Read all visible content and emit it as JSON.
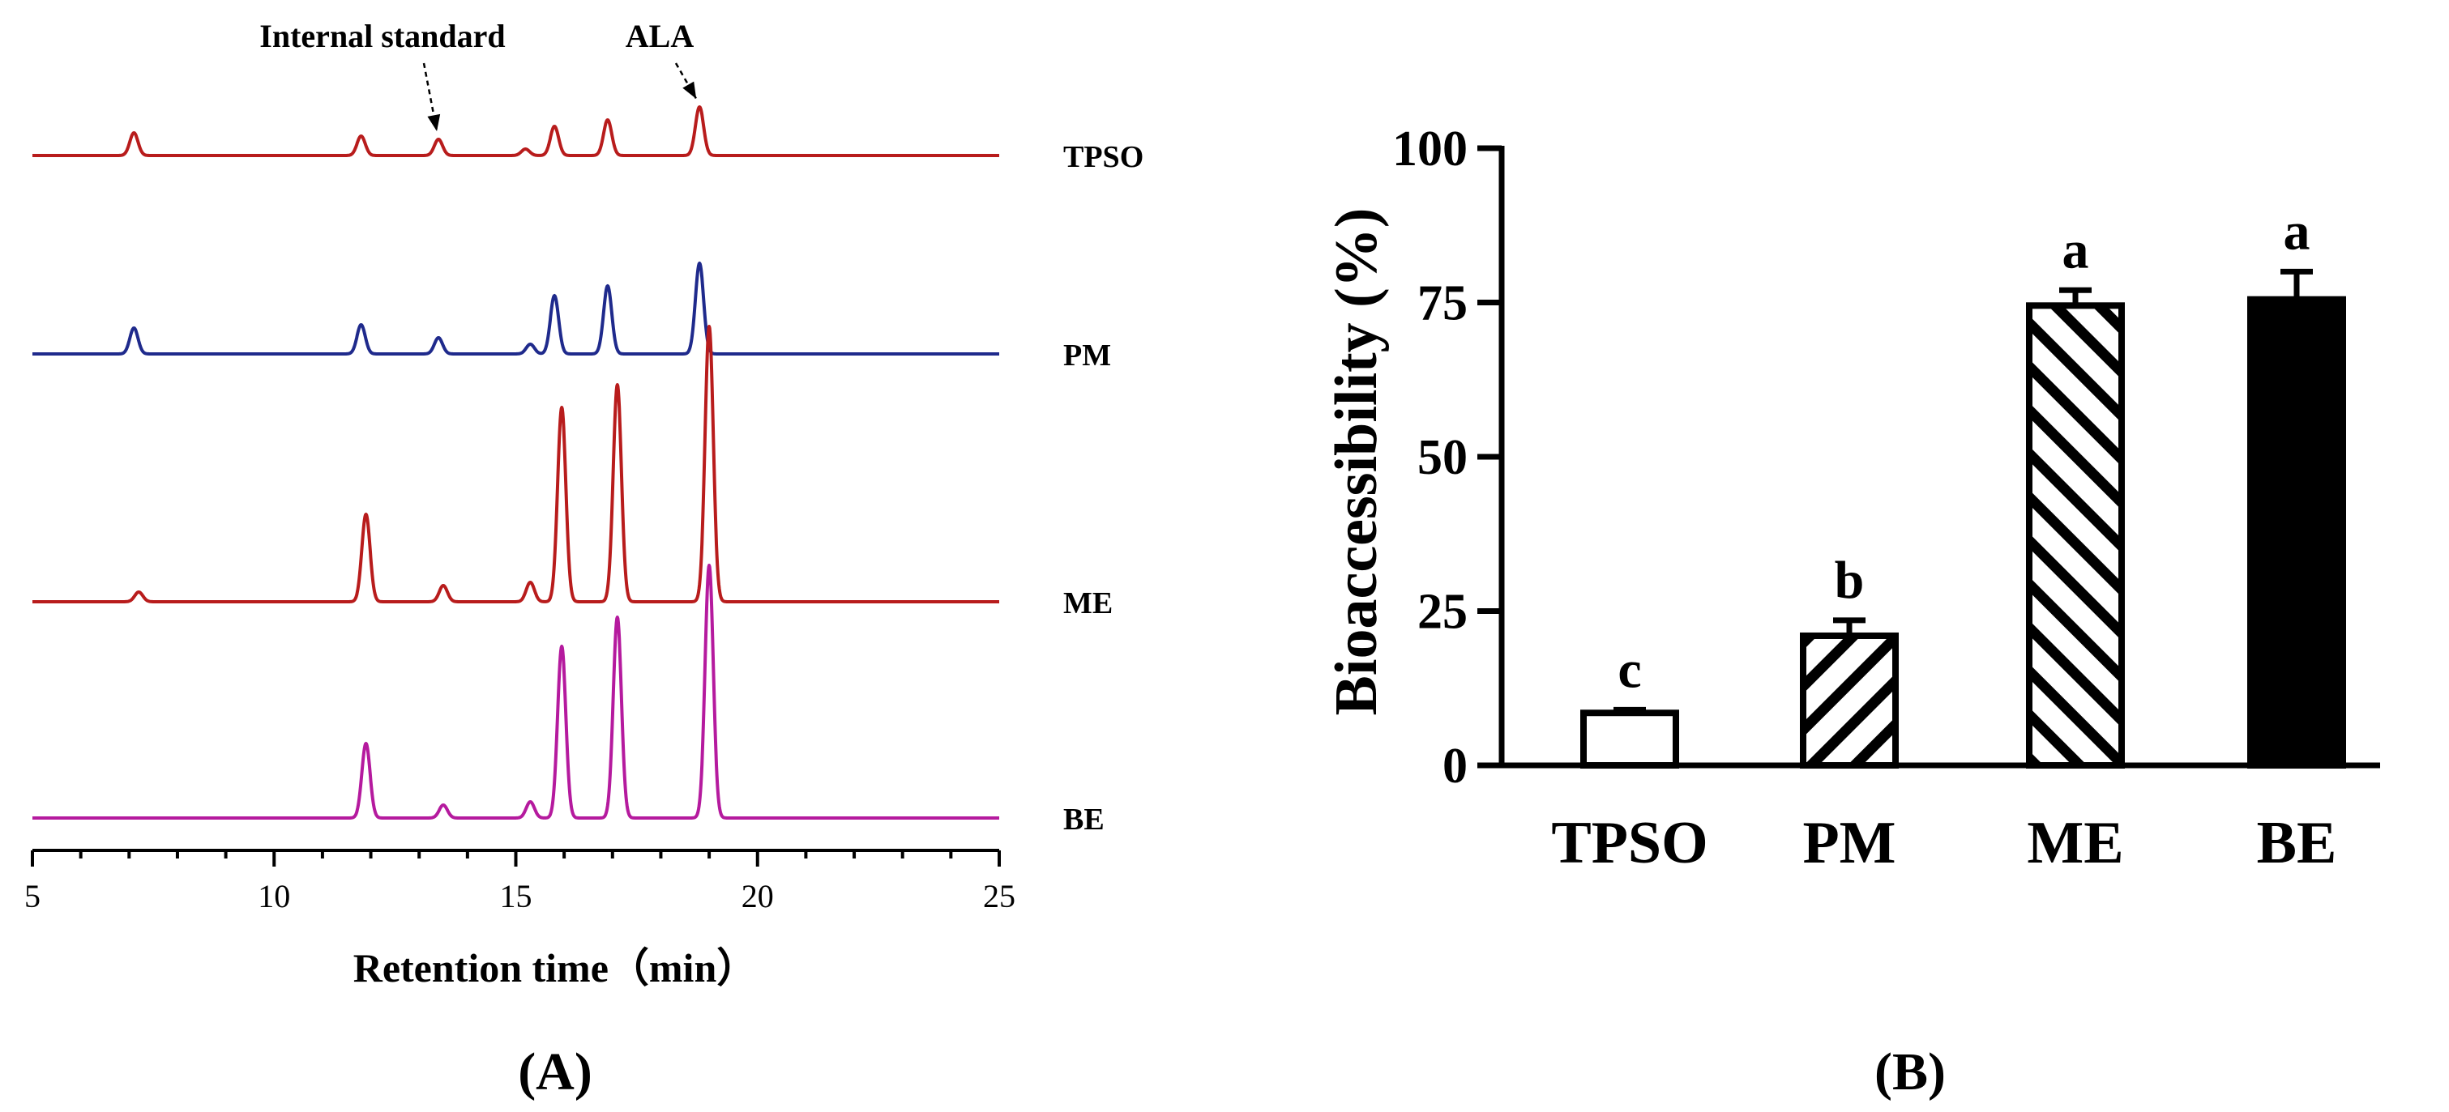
{
  "chart_data": [
    {
      "type": "line",
      "panel_label": "(A)",
      "xlabel": "Retention time（min）",
      "xlim": [
        5,
        25
      ],
      "x_ticks": [
        5,
        10,
        15,
        20,
        25
      ],
      "annotations": [
        {
          "text": "Internal standard",
          "x": 13.4
        },
        {
          "text": "ALA",
          "x": 18.8
        }
      ],
      "series": [
        {
          "name": "TPSO",
          "color": "#b81c1c",
          "peaks": [
            {
              "rt": 7.1,
              "height": 0.07
            },
            {
              "rt": 11.8,
              "height": 0.06
            },
            {
              "rt": 13.4,
              "height": 0.05
            },
            {
              "rt": 15.2,
              "height": 0.02
            },
            {
              "rt": 15.8,
              "height": 0.09
            },
            {
              "rt": 16.9,
              "height": 0.11
            },
            {
              "rt": 18.8,
              "height": 0.15
            }
          ]
        },
        {
          "name": "PM",
          "color": "#1f2a8c",
          "peaks": [
            {
              "rt": 7.1,
              "height": 0.08
            },
            {
              "rt": 11.8,
              "height": 0.09
            },
            {
              "rt": 13.4,
              "height": 0.05
            },
            {
              "rt": 15.3,
              "height": 0.03
            },
            {
              "rt": 15.8,
              "height": 0.18
            },
            {
              "rt": 16.9,
              "height": 0.21
            },
            {
              "rt": 18.8,
              "height": 0.28
            }
          ]
        },
        {
          "name": "ME",
          "color": "#b81c1c",
          "peaks": [
            {
              "rt": 7.2,
              "height": 0.03
            },
            {
              "rt": 11.9,
              "height": 0.27
            },
            {
              "rt": 13.5,
              "height": 0.05
            },
            {
              "rt": 15.3,
              "height": 0.06
            },
            {
              "rt": 15.95,
              "height": 0.6
            },
            {
              "rt": 17.1,
              "height": 0.67
            },
            {
              "rt": 19.0,
              "height": 0.85
            }
          ]
        },
        {
          "name": "BE",
          "color": "#b51a9e",
          "peaks": [
            {
              "rt": 11.9,
              "height": 0.23
            },
            {
              "rt": 13.5,
              "height": 0.04
            },
            {
              "rt": 15.3,
              "height": 0.05
            },
            {
              "rt": 15.95,
              "height": 0.53
            },
            {
              "rt": 17.1,
              "height": 0.62
            },
            {
              "rt": 19.0,
              "height": 0.78
            }
          ]
        }
      ]
    },
    {
      "type": "bar",
      "panel_label": "(B)",
      "ylabel": "Bioaccessibility (%)",
      "ylim": [
        0,
        100
      ],
      "y_ticks": [
        0,
        25,
        50,
        75,
        100
      ],
      "categories": [
        "TPSO",
        "PM",
        "ME",
        "BE"
      ],
      "values": [
        8.5,
        21.0,
        74.5,
        75.5
      ],
      "errors": [
        0.5,
        2.5,
        2.5,
        4.5
      ],
      "significance": [
        "c",
        "b",
        "a",
        "a"
      ],
      "fills": [
        "open",
        "hatch-right",
        "hatch-left",
        "solid"
      ]
    }
  ]
}
